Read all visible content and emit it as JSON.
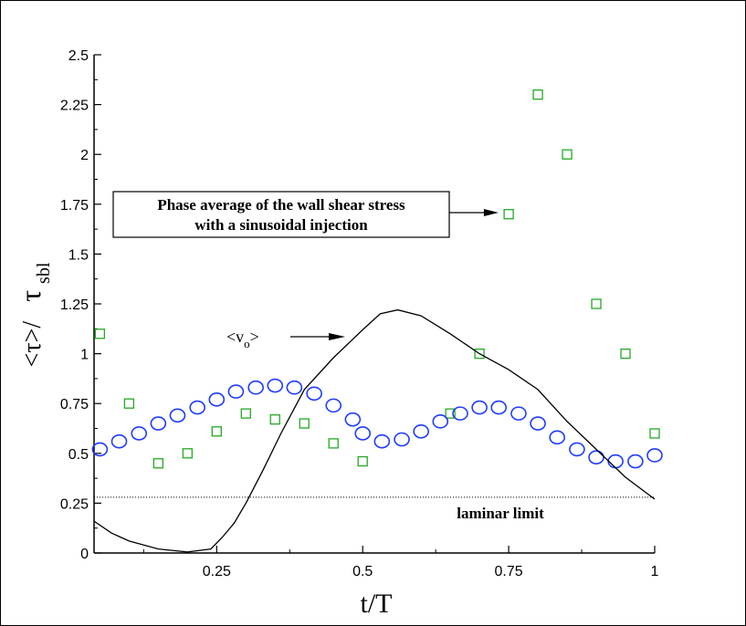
{
  "chart_data": {
    "type": "scatter",
    "xlabel": "t/T",
    "ylabel_main": "<τ>/",
    "ylabel_sym": "τ",
    "ylabel_sub": "sbl",
    "xlim": [
      0.04,
      1.0
    ],
    "ylim": [
      0,
      2.5
    ],
    "x_ticks": [
      {
        "v": 0.25,
        "label": "0.25"
      },
      {
        "v": 0.5,
        "label": "0.5"
      },
      {
        "v": 0.75,
        "label": "0.75"
      },
      {
        "v": 1.0,
        "label": "1"
      }
    ],
    "y_ticks": [
      {
        "v": 0,
        "label": "0"
      },
      {
        "v": 0.25,
        "label": "0.25"
      },
      {
        "v": 0.5,
        "label": "0.5"
      },
      {
        "v": 0.75,
        "label": "0.75"
      },
      {
        "v": 1.0,
        "label": "1"
      },
      {
        "v": 1.25,
        "label": "1.25"
      },
      {
        "v": 1.5,
        "label": "1.5"
      },
      {
        "v": 1.75,
        "label": "1.75"
      },
      {
        "v": 2.0,
        "label": "2"
      },
      {
        "v": 2.25,
        "label": "2.25"
      },
      {
        "v": 2.5,
        "label": "2.5"
      }
    ],
    "grid": false,
    "series": [
      {
        "marker": "square",
        "color": "#22aa22",
        "x": [
          0.05,
          0.1,
          0.15,
          0.2,
          0.25,
          0.3,
          0.35,
          0.4,
          0.45,
          0.5,
          0.65,
          0.7,
          0.75,
          0.8,
          0.85,
          0.9,
          0.95,
          1.0
        ],
        "y": [
          1.1,
          0.75,
          0.45,
          0.5,
          0.61,
          0.7,
          0.67,
          0.65,
          0.55,
          0.46,
          0.7,
          1.0,
          1.7,
          2.3,
          2.0,
          1.25,
          1.0,
          0.6
        ]
      },
      {
        "marker": "circle",
        "color": "#1f3cff",
        "x": [
          0.05,
          0.083,
          0.117,
          0.15,
          0.183,
          0.217,
          0.25,
          0.283,
          0.317,
          0.35,
          0.383,
          0.417,
          0.45,
          0.483,
          0.5,
          0.533,
          0.567,
          0.6,
          0.633,
          0.667,
          0.7,
          0.733,
          0.767,
          0.8,
          0.833,
          0.867,
          0.9,
          0.933,
          0.967,
          1.0
        ],
        "y": [
          0.52,
          0.56,
          0.6,
          0.65,
          0.69,
          0.73,
          0.77,
          0.81,
          0.83,
          0.84,
          0.83,
          0.8,
          0.74,
          0.67,
          0.6,
          0.56,
          0.57,
          0.61,
          0.66,
          0.7,
          0.73,
          0.73,
          0.7,
          0.65,
          0.58,
          0.52,
          0.48,
          0.46,
          0.46,
          0.49
        ]
      },
      {
        "marker": "line",
        "color": "#000000",
        "x": [
          0.04,
          0.07,
          0.1,
          0.15,
          0.2,
          0.24,
          0.26,
          0.28,
          0.3,
          0.33,
          0.36,
          0.4,
          0.45,
          0.5,
          0.53,
          0.56,
          0.6,
          0.65,
          0.7,
          0.75,
          0.8,
          0.85,
          0.9,
          0.95,
          1.0
        ],
        "y": [
          0.16,
          0.1,
          0.06,
          0.02,
          0.005,
          0.02,
          0.08,
          0.15,
          0.25,
          0.42,
          0.6,
          0.82,
          0.98,
          1.12,
          1.2,
          1.22,
          1.19,
          1.1,
          1.0,
          0.92,
          0.82,
          0.66,
          0.52,
          0.38,
          0.27
        ]
      }
    ],
    "reference_line": {
      "y": 0.28,
      "label": "laminar limit"
    },
    "annotation_box": {
      "line1": "Phase average of the wall shear stress",
      "line2": "with a sinusoidal injection",
      "arrow_target": {
        "x": 0.745,
        "y": 1.7
      }
    },
    "v0_label": {
      "text": "<v",
      "sub": "o",
      "close": ">",
      "arrow_target": {
        "x": 0.47,
        "y": 1.09
      }
    }
  }
}
